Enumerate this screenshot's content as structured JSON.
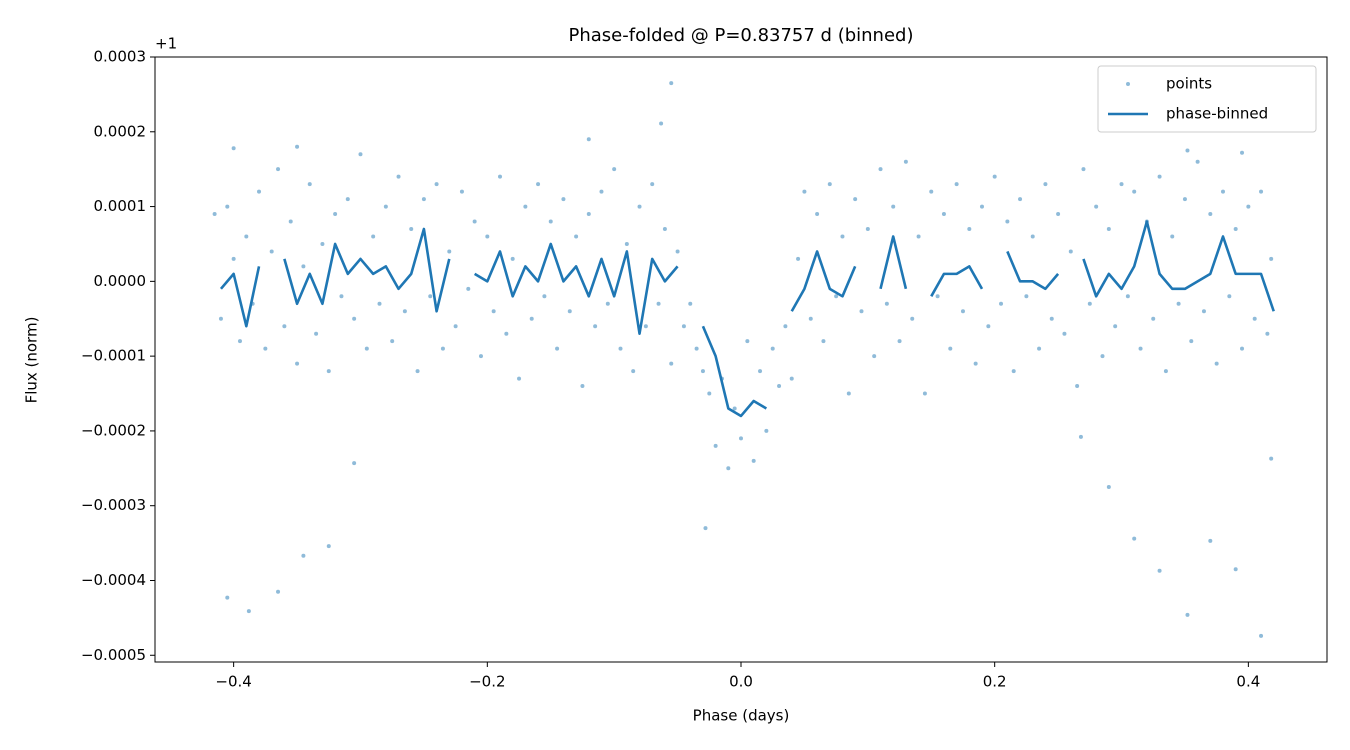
{
  "chart_data": {
    "type": "scatter",
    "title": "Phase-folded @ P=0.83757 d (binned)",
    "x_label": "Phase (days)",
    "y_label": "Flux (norm)",
    "offset_label": "+1",
    "xlim": [
      -0.462,
      0.462
    ],
    "ylim": [
      -0.000509,
      0.0003
    ],
    "xticks": [
      {
        "value": -0.4,
        "label": "−0.4"
      },
      {
        "value": -0.2,
        "label": "−0.2"
      },
      {
        "value": 0,
        "label": "0.0"
      },
      0.2,
      0.4
    ],
    "yticks": [
      {
        "value": -0.0005,
        "label": "−0.0005"
      },
      {
        "value": -0.0004,
        "label": "−0.0004"
      },
      {
        "value": -0.0003,
        "label": "−0.0003"
      },
      {
        "value": -0.0002,
        "label": "−0.0002"
      },
      {
        "value": -0.0001,
        "label": "−0.0001"
      },
      {
        "value": 0,
        "label": "0.0000"
      },
      0.0001,
      0.0002,
      0.0003
    ],
    "legend": "upper right",
    "series": [
      {
        "name": "points",
        "type": "scatter",
        "color": "#1f77b4",
        "x": [
          -0.415,
          -0.41,
          -0.405,
          -0.4,
          -0.395,
          -0.39,
          -0.385,
          -0.38,
          -0.375,
          -0.37,
          -0.365,
          -0.36,
          -0.355,
          -0.35,
          -0.345,
          -0.34,
          -0.335,
          -0.33,
          -0.325,
          -0.32,
          -0.315,
          -0.31,
          -0.305,
          -0.3,
          -0.295,
          -0.29,
          -0.285,
          -0.28,
          -0.275,
          -0.27,
          -0.265,
          -0.26,
          -0.255,
          -0.25,
          -0.245,
          -0.24,
          -0.235,
          -0.23,
          -0.225,
          -0.22,
          -0.215,
          -0.21,
          -0.205,
          -0.2,
          -0.195,
          -0.19,
          -0.185,
          -0.18,
          -0.175,
          -0.17,
          -0.165,
          -0.16,
          -0.155,
          -0.15,
          -0.145,
          -0.14,
          -0.135,
          -0.13,
          -0.125,
          -0.12,
          -0.115,
          -0.11,
          -0.105,
          -0.1,
          -0.095,
          -0.09,
          -0.085,
          -0.08,
          -0.075,
          -0.07,
          -0.065,
          -0.06,
          -0.055,
          -0.05,
          -0.045,
          -0.04,
          -0.035,
          -0.03,
          -0.025,
          -0.02,
          -0.015,
          -0.01,
          -0.005,
          0,
          0.005,
          0.01,
          0.015,
          0.02,
          0.025,
          0.03,
          0.035,
          0.04,
          0.045,
          0.05,
          0.055,
          0.06,
          0.065,
          0.07,
          0.075,
          0.08,
          0.085,
          0.09,
          0.095,
          0.1,
          0.105,
          0.11,
          0.115,
          0.12,
          0.125,
          0.13,
          0.135,
          0.14,
          0.145,
          0.15,
          0.155,
          0.16,
          0.165,
          0.17,
          0.175,
          0.18,
          0.185,
          0.19,
          0.195,
          0.2,
          0.205,
          0.21,
          0.215,
          0.22,
          0.225,
          0.23,
          0.235,
          0.24,
          0.245,
          0.25,
          0.255,
          0.26,
          0.265,
          0.27,
          0.275,
          0.28,
          0.285,
          0.29,
          0.295,
          0.3,
          0.305,
          0.31,
          0.315,
          0.32,
          0.325,
          0.33,
          0.335,
          0.34,
          0.345,
          0.35,
          0.355,
          0.36,
          0.365,
          0.37,
          0.375,
          0.38,
          0.385,
          0.39,
          0.395,
          0.4,
          0.405,
          0.41,
          0.415,
          0.418,
          -0.405,
          -0.388,
          -0.365,
          -0.345,
          -0.325,
          -0.305,
          -0.055,
          -0.063,
          0.268,
          0.29,
          0.31,
          0.33,
          0.352,
          0.37,
          0.39,
          0.41,
          0.418,
          -0.028,
          0.352,
          0.395,
          -0.4,
          -0.35,
          -0.12
        ],
        "values": [
          9e-05,
          -5e-05,
          0.0001,
          3e-05,
          -8e-05,
          6e-05,
          -3e-05,
          0.00012,
          -9e-05,
          4e-05,
          0.00015,
          -6e-05,
          8e-05,
          -0.00011,
          2e-05,
          0.00013,
          -7e-05,
          5e-05,
          -0.00012,
          9e-05,
          -2e-05,
          0.00011,
          -5e-05,
          0.00017,
          -9e-05,
          6e-05,
          -3e-05,
          0.0001,
          -8e-05,
          0.00014,
          -4e-05,
          7e-05,
          -0.00012,
          0.00011,
          -2e-05,
          0.00013,
          -9e-05,
          4e-05,
          -6e-05,
          0.00012,
          -1e-05,
          8e-05,
          -0.0001,
          6e-05,
          -4e-05,
          0.00014,
          -7e-05,
          3e-05,
          -0.00013,
          0.0001,
          -5e-05,
          0.00013,
          -2e-05,
          8e-05,
          -9e-05,
          0.00011,
          -4e-05,
          6e-05,
          -0.00014,
          9e-05,
          -6e-05,
          0.00012,
          -3e-05,
          0.00015,
          -9e-05,
          5e-05,
          -0.00012,
          0.0001,
          -6e-05,
          0.00013,
          -3e-05,
          7e-05,
          -0.00011,
          4e-05,
          -6e-05,
          -3e-05,
          -9e-05,
          -0.00012,
          -0.00015,
          -0.00022,
          -0.00013,
          -0.00025,
          -0.00017,
          -0.00021,
          -8e-05,
          -0.00024,
          -0.00012,
          -0.0002,
          -9e-05,
          -0.00014,
          -6e-05,
          -0.00013,
          3e-05,
          0.00012,
          -5e-05,
          9e-05,
          -8e-05,
          0.00013,
          -2e-05,
          6e-05,
          -0.00015,
          0.00011,
          -4e-05,
          7e-05,
          -0.0001,
          0.00015,
          -3e-05,
          0.0001,
          -8e-05,
          0.00016,
          -5e-05,
          6e-05,
          -0.00015,
          0.00012,
          -2e-05,
          9e-05,
          -9e-05,
          0.00013,
          -4e-05,
          7e-05,
          -0.00011,
          0.0001,
          -6e-05,
          0.00014,
          -3e-05,
          8e-05,
          -0.00012,
          0.00011,
          -2e-05,
          6e-05,
          -9e-05,
          0.00013,
          -5e-05,
          9e-05,
          -7e-05,
          4e-05,
          -0.00014,
          0.00015,
          -3e-05,
          0.0001,
          -0.0001,
          7e-05,
          -6e-05,
          0.00013,
          -2e-05,
          0.00012,
          -9e-05,
          8e-05,
          -5e-05,
          0.00014,
          -0.00012,
          6e-05,
          -3e-05,
          0.00011,
          -8e-05,
          0.00016,
          -4e-05,
          9e-05,
          -0.00011,
          0.00012,
          -2e-05,
          7e-05,
          -9e-05,
          0.0001,
          -5e-05,
          0.00012,
          -7e-05,
          3e-05,
          -0.000423,
          -0.000441,
          -0.000415,
          -0.000367,
          -0.000354,
          -0.000243,
          0.000265,
          0.000211,
          -0.000208,
          -0.000275,
          -0.000344,
          -0.000387,
          -0.000446,
          -0.000347,
          -0.000385,
          -0.000474,
          -0.000237,
          -0.00033,
          0.000175,
          0.000172,
          0.000178,
          0.00018,
          0.00019
        ]
      },
      {
        "name": "phase-binned",
        "type": "line",
        "color": "#1f77b4",
        "x": [
          -0.41,
          -0.4,
          -0.39,
          -0.38,
          -0.37,
          -0.36,
          -0.35,
          -0.34,
          -0.33,
          -0.32,
          -0.31,
          -0.3,
          -0.29,
          -0.28,
          -0.27,
          -0.26,
          -0.25,
          -0.24,
          -0.23,
          -0.22,
          -0.21,
          -0.2,
          -0.19,
          -0.18,
          -0.17,
          -0.16,
          -0.15,
          -0.14,
          -0.13,
          -0.12,
          -0.11,
          -0.1,
          -0.09,
          -0.08,
          -0.07,
          -0.06,
          -0.05,
          -0.04,
          -0.03,
          -0.02,
          -0.01,
          0,
          0.01,
          0.02,
          0.03,
          0.04,
          0.05,
          0.06,
          0.07,
          0.08,
          0.09,
          0.1,
          0.11,
          0.12,
          0.13,
          0.14,
          0.15,
          0.16,
          0.17,
          0.18,
          0.19,
          0.2,
          0.21,
          0.22,
          0.23,
          0.24,
          0.25,
          0.26,
          0.27,
          0.28,
          0.29,
          0.3,
          0.31,
          0.32,
          0.33,
          0.34,
          0.35,
          0.36,
          0.37,
          0.38,
          0.39,
          0.4,
          0.41,
          0.42
        ],
        "values": [
          -1e-05,
          1e-05,
          -6e-05,
          2e-05,
          null,
          3e-05,
          -3e-05,
          1e-05,
          -3e-05,
          5e-05,
          1e-05,
          3e-05,
          1e-05,
          2e-05,
          -1e-05,
          1e-05,
          7e-05,
          -4e-05,
          3e-05,
          null,
          1e-05,
          0,
          4e-05,
          -2e-05,
          2e-05,
          0,
          5e-05,
          0,
          2e-05,
          -2e-05,
          3e-05,
          -2e-05,
          4e-05,
          -7e-05,
          3e-05,
          0,
          2e-05,
          null,
          -6e-05,
          -0.0001,
          -0.00017,
          -0.00018,
          -0.00016,
          -0.00017,
          null,
          -4e-05,
          -1e-05,
          4e-05,
          -1e-05,
          -2e-05,
          2e-05,
          null,
          -1e-05,
          6e-05,
          -1e-05,
          null,
          -2e-05,
          1e-05,
          1e-05,
          2e-05,
          -1e-05,
          null,
          4e-05,
          0,
          0,
          -1e-05,
          1e-05,
          null,
          3e-05,
          -2e-05,
          1e-05,
          -1e-05,
          2e-05,
          8e-05,
          1e-05,
          -1e-05,
          -1e-05,
          0,
          1e-05,
          6e-05,
          1e-05,
          1e-05,
          1e-05,
          -4e-05
        ]
      }
    ]
  }
}
